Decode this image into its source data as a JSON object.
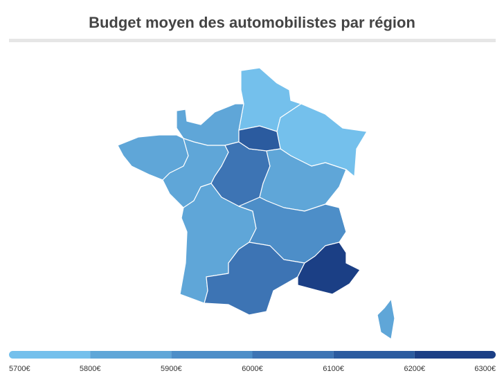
{
  "chart_data": {
    "type": "choropleth",
    "title": "Budget moyen des automobilistes par région",
    "values": [
      5750,
      5750,
      5850,
      5850,
      5850,
      6050,
      6150,
      5880,
      5850,
      5950,
      6050,
      6250,
      5850
    ],
    "colors": [
      "#74c0ec",
      "#5fa6d8",
      "#4d8ec8",
      "#3d74b4",
      "#2b5b9f",
      "#1b3f85"
    ],
    "lim": [
      5700,
      6300
    ],
    "ticks": [
      {
        "value": 5700,
        "label": "5700€"
      },
      {
        "value": 5800,
        "label": "5800€"
      },
      {
        "value": 5900,
        "label": "5900€"
      },
      {
        "value": 6000,
        "label": "6000€"
      },
      {
        "value": 6100,
        "label": "6100€"
      },
      {
        "value": 6200,
        "label": "6200€"
      },
      {
        "value": 6300,
        "label": "6300€"
      }
    ]
  }
}
